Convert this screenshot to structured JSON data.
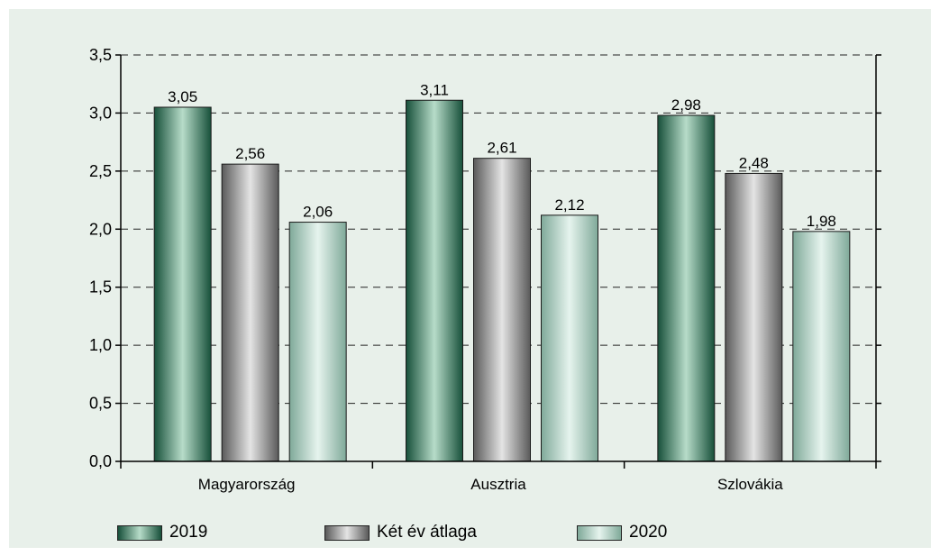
{
  "chart_data": {
    "type": "bar",
    "categories": [
      "Magyarország",
      "Ausztria",
      "Szlovákia"
    ],
    "series": [
      {
        "name": "2019",
        "values": [
          3.05,
          3.11,
          2.98
        ],
        "labels": [
          "3,05",
          "3,11",
          "2,98"
        ]
      },
      {
        "name": "Két év átlaga",
        "values": [
          2.56,
          2.61,
          2.48
        ],
        "labels": [
          "2,56",
          "2,61",
          "2,48"
        ]
      },
      {
        "name": "2020",
        "values": [
          2.06,
          2.12,
          1.98
        ],
        "labels": [
          "2,06",
          "2,12",
          "1,98"
        ]
      }
    ],
    "yticks": [
      0,
      0.5,
      1,
      1.5,
      2,
      2.5,
      3,
      3.5
    ],
    "ytick_labels": [
      "0,0",
      "0,5",
      "1,0",
      "1,5",
      "2,0",
      "2,5",
      "3,0",
      "3,5"
    ],
    "ylim": [
      0,
      3.5
    ],
    "grid": "horizontal dashed",
    "legend_position": "bottom",
    "colors": {
      "series_2019": [
        "#17503a",
        "#b7dcc9"
      ],
      "series_avg": [
        "#5a5a5a",
        "#e4e4e4"
      ],
      "series_2020": [
        "#7fa999",
        "#e6f4ee"
      ],
      "panel_background": "#e8f0ea"
    }
  }
}
